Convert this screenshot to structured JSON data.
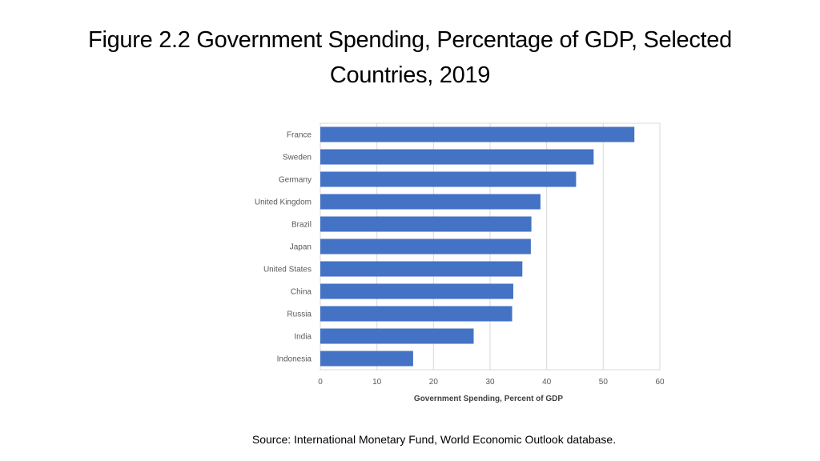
{
  "slide": {
    "title_line1": "Figure 2.2 Government Spending, Percentage of GDP, Selected",
    "title_line2": "Countries, 2019",
    "source": "Source: International Monetary Fund, World Economic Outlook database."
  },
  "chart_data": {
    "type": "bar",
    "orientation": "horizontal",
    "title": "",
    "categories": [
      "France",
      "Sweden",
      "Germany",
      "United Kingdom",
      "Brazil",
      "Japan",
      "United States",
      "China",
      "Russia",
      "India",
      "Indonesia"
    ],
    "values": [
      55.5,
      48.3,
      45.2,
      38.9,
      37.3,
      37.2,
      35.7,
      34.1,
      33.9,
      27.1,
      16.4
    ],
    "xlabel": "Government Spending, Percent of GDP",
    "ylabel": "",
    "xlim": [
      0,
      60
    ],
    "xticks": [
      0,
      10,
      20,
      30,
      40,
      50,
      60
    ],
    "grid": true,
    "bar_color": "#4472C4",
    "grid_color": "#D9D9D9"
  }
}
